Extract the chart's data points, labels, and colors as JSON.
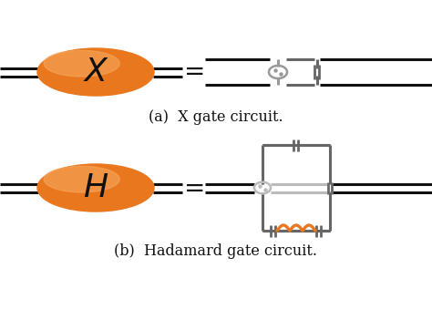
{
  "orange_color": "#E8771E",
  "orange_light": "#F5A55A",
  "gray_dark": "#666666",
  "gray_mid": "#999999",
  "gray_light": "#BBBBBB",
  "black": "#111111",
  "white": "#FFFFFF",
  "label_a": "(a)  X gate circuit.",
  "label_b": "(b)  Hadamard gate circuit.",
  "gate_x": "$\\mathit{X}$",
  "gate_h": "$\\mathit{H}$",
  "fig_w": 4.74,
  "fig_h": 3.51,
  "dpi": 100
}
